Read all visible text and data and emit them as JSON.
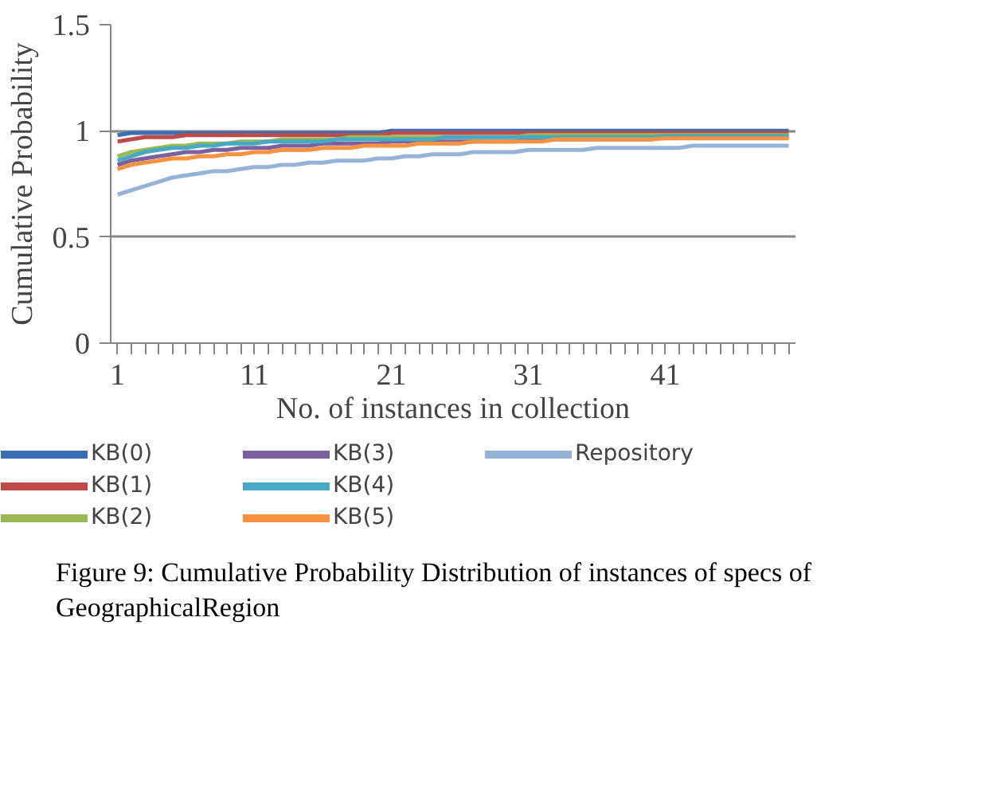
{
  "chart_data": {
    "type": "line",
    "ylabel": "Cumulative Probability",
    "xlabel": "No. of instances in collection",
    "categories": [
      "1",
      null,
      null,
      null,
      null,
      null,
      null,
      null,
      null,
      null,
      "11",
      null,
      null,
      null,
      null,
      null,
      null,
      null,
      null,
      null,
      "21",
      null,
      null,
      null,
      null,
      null,
      null,
      null,
      null,
      null,
      "31",
      null,
      null,
      null,
      null,
      null,
      null,
      null,
      null,
      null,
      "41",
      null,
      null,
      null,
      null,
      null,
      null,
      null,
      null,
      null
    ],
    "ylim": [
      0,
      1.5
    ],
    "yticks": [
      0,
      0.5,
      1,
      1.5
    ],
    "grid": "y",
    "legend": "bottom",
    "marker": "none",
    "line_style": "solid",
    "series": [
      {
        "name": "KB(0)",
        "color": "#3c6eb4",
        "values": [
          0.98,
          0.99,
          0.99,
          0.99,
          0.99,
          0.99,
          0.99,
          0.99,
          0.99,
          0.99,
          0.99,
          0.99,
          0.99,
          0.99,
          0.99,
          0.99,
          0.99,
          0.99,
          0.99,
          0.99,
          1,
          1,
          1,
          1,
          1,
          1,
          1,
          1,
          1,
          1,
          1,
          1,
          1,
          1,
          1,
          1,
          1,
          1,
          1,
          1,
          1,
          1,
          1,
          1,
          1,
          1,
          1,
          1,
          1,
          1
        ]
      },
      {
        "name": "KB(1)",
        "color": "#be4b48",
        "values": [
          0.95,
          0.96,
          0.97,
          0.97,
          0.97,
          0.98,
          0.98,
          0.98,
          0.98,
          0.98,
          0.98,
          0.98,
          0.98,
          0.98,
          0.98,
          0.98,
          0.98,
          0.98,
          0.98,
          0.98,
          0.99,
          0.99,
          0.99,
          0.99,
          0.99,
          0.99,
          0.99,
          0.99,
          0.99,
          0.99,
          0.99,
          0.99,
          0.99,
          0.99,
          0.99,
          0.99,
          0.99,
          0.99,
          0.99,
          0.99,
          0.99,
          0.99,
          0.99,
          0.99,
          0.99,
          0.99,
          0.99,
          0.99,
          0.99,
          0.99
        ]
      },
      {
        "name": "KB(2)",
        "color": "#98b954",
        "values": [
          0.88,
          0.9,
          0.91,
          0.92,
          0.93,
          0.93,
          0.94,
          0.94,
          0.94,
          0.95,
          0.95,
          0.95,
          0.96,
          0.96,
          0.96,
          0.96,
          0.96,
          0.97,
          0.97,
          0.97,
          0.97,
          0.97,
          0.97,
          0.97,
          0.97,
          0.97,
          0.97,
          0.97,
          0.97,
          0.97,
          0.98,
          0.98,
          0.98,
          0.98,
          0.98,
          0.98,
          0.98,
          0.98,
          0.98,
          0.98,
          0.98,
          0.98,
          0.98,
          0.98,
          0.98,
          0.98,
          0.98,
          0.98,
          0.98,
          0.98
        ]
      },
      {
        "name": "KB(3)",
        "color": "#7d60a0",
        "values": [
          0.84,
          0.86,
          0.87,
          0.88,
          0.89,
          0.9,
          0.9,
          0.91,
          0.91,
          0.92,
          0.92,
          0.92,
          0.93,
          0.93,
          0.93,
          0.94,
          0.94,
          0.94,
          0.94,
          0.94,
          0.95,
          0.95,
          0.95,
          0.95,
          0.95,
          0.95,
          0.95,
          0.95,
          0.95,
          0.95,
          0.96,
          0.96,
          0.96,
          0.96,
          0.96,
          0.96,
          0.96,
          0.96,
          0.96,
          0.96,
          0.97,
          0.97,
          0.97,
          0.97,
          0.97,
          0.97,
          0.97,
          0.97,
          0.97,
          0.97
        ]
      },
      {
        "name": "KB(4)",
        "color": "#46aac5",
        "values": [
          0.86,
          0.88,
          0.9,
          0.91,
          0.92,
          0.92,
          0.93,
          0.93,
          0.94,
          0.94,
          0.94,
          0.95,
          0.95,
          0.95,
          0.95,
          0.95,
          0.96,
          0.96,
          0.96,
          0.96,
          0.96,
          0.96,
          0.96,
          0.96,
          0.97,
          0.97,
          0.97,
          0.97,
          0.97,
          0.97,
          0.97,
          0.97,
          0.97,
          0.97,
          0.97,
          0.97,
          0.97,
          0.97,
          0.97,
          0.97,
          0.975,
          0.975,
          0.975,
          0.975,
          0.975,
          0.975,
          0.975,
          0.975,
          0.975,
          0.975
        ]
      },
      {
        "name": "KB(5)",
        "color": "#f69240",
        "values": [
          0.82,
          0.84,
          0.85,
          0.86,
          0.87,
          0.87,
          0.88,
          0.88,
          0.89,
          0.89,
          0.9,
          0.9,
          0.91,
          0.91,
          0.91,
          0.92,
          0.92,
          0.92,
          0.93,
          0.93,
          0.93,
          0.93,
          0.94,
          0.94,
          0.94,
          0.94,
          0.95,
          0.95,
          0.95,
          0.95,
          0.95,
          0.95,
          0.96,
          0.96,
          0.96,
          0.96,
          0.96,
          0.96,
          0.96,
          0.96,
          0.965,
          0.965,
          0.965,
          0.965,
          0.965,
          0.965,
          0.965,
          0.965,
          0.965,
          0.965
        ]
      },
      {
        "name": "Repository",
        "color": "#95b3d7",
        "values": [
          0.7,
          0.72,
          0.74,
          0.76,
          0.78,
          0.79,
          0.8,
          0.81,
          0.81,
          0.82,
          0.83,
          0.83,
          0.84,
          0.84,
          0.85,
          0.85,
          0.86,
          0.86,
          0.86,
          0.87,
          0.87,
          0.88,
          0.88,
          0.89,
          0.89,
          0.89,
          0.9,
          0.9,
          0.9,
          0.9,
          0.91,
          0.91,
          0.91,
          0.91,
          0.91,
          0.92,
          0.92,
          0.92,
          0.92,
          0.92,
          0.92,
          0.92,
          0.93,
          0.93,
          0.93,
          0.93,
          0.93,
          0.93,
          0.93,
          0.93
        ]
      }
    ],
    "annotations": [
      "Figure 9: Cumulative Probability Distribution of instances of specs of GeographicalRegion"
    ]
  }
}
